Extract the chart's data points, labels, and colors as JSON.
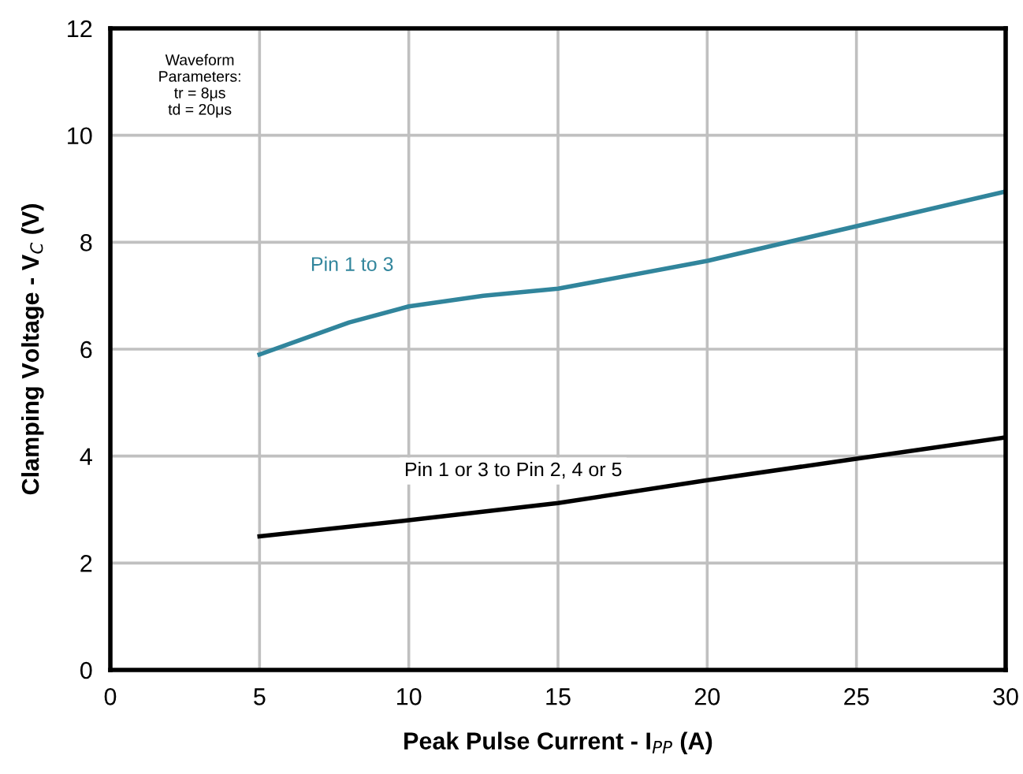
{
  "chart_data": {
    "type": "line",
    "xlabel": "Peak Pulse Current - I$_{PP}$ (A)",
    "ylabel": "Clamping Voltage - V$_{C}$ (V)",
    "xlim": [
      0,
      30
    ],
    "xticks": [
      0,
      5,
      10,
      15,
      20,
      25,
      30
    ],
    "ylim": [
      0,
      12
    ],
    "yticks": [
      0,
      2,
      4,
      6,
      8,
      10,
      12
    ],
    "grid": true,
    "legend": false,
    "line_style": "solid",
    "annotations": [
      "Waveform\nParameters:\ntr = 8μs\ntd = 20μs"
    ],
    "series": [
      {
        "name": "Pin 1 to 3",
        "color": "#31859c",
        "x": [
          5,
          8,
          10,
          12.5,
          15,
          20,
          25,
          30
        ],
        "values": [
          5.9,
          6.5,
          6.8,
          7.0,
          7.13,
          7.65,
          8.3,
          8.95
        ]
      },
      {
        "name": "Pin 1 or 3 to Pin 2, 4 or 5",
        "color": "#000000",
        "x": [
          5,
          10,
          15,
          20,
          25,
          30
        ],
        "values": [
          2.5,
          2.8,
          3.12,
          3.55,
          3.95,
          4.35
        ]
      }
    ]
  }
}
